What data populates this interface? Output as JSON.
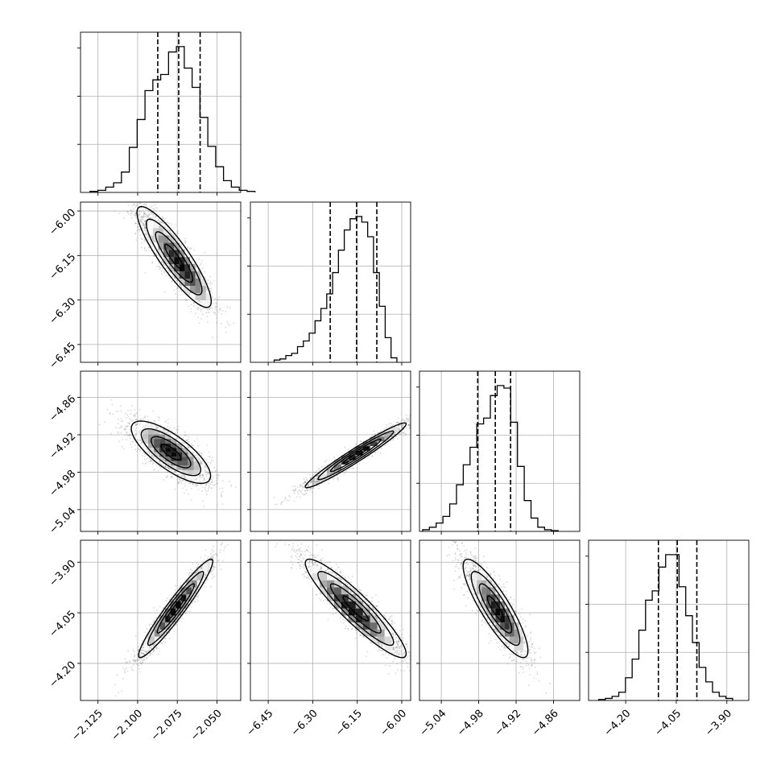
{
  "chart_data": {
    "type": "corner",
    "grid": true,
    "title": "",
    "parameters": [
      {
        "range": [
          -2.136,
          -2.035
        ],
        "ticks": [
          -2.125,
          -2.1,
          -2.075,
          -2.05
        ],
        "tick_labels": [
          "−2.125",
          "−2.100",
          "−2.075",
          "−2.050"
        ],
        "quantiles": [
          -2.0873,
          -2.0741,
          -2.0606
        ],
        "hist": {
          "start": -2.13,
          "step": 0.00495,
          "counts": [
            1,
            2,
            5,
            9,
            19,
            42,
            68,
            95,
            105,
            110,
            131,
            136,
            116,
            98,
            70,
            43,
            24,
            11,
            5,
            2,
            1
          ]
        }
      },
      {
        "range": [
          -6.51,
          -5.97
        ],
        "ticks": [
          -6.45,
          -6.3,
          -6.15,
          -6.0
        ],
        "tick_labels": [
          "−6.45",
          "−6.30",
          "−6.15",
          "−6.00"
        ],
        "quantiles": [
          -6.241,
          -6.152,
          -6.084
        ],
        "hist": {
          "start": -6.43,
          "step": 0.0197,
          "counts": [
            2,
            3,
            6,
            8,
            14,
            19,
            26,
            37,
            48,
            61,
            80,
            100,
            118,
            128,
            130,
            125,
            112,
            80,
            50,
            22,
            4
          ]
        }
      },
      {
        "range": [
          -5.075,
          -4.818
        ],
        "ticks": [
          -5.04,
          -4.98,
          -4.92,
          -4.86
        ],
        "tick_labels": [
          "−5.04",
          "−4.98",
          "−4.92",
          "−4.86"
        ],
        "quantiles": [
          -4.9816,
          -4.9534,
          -4.9289
        ],
        "hist": {
          "start": -5.07,
          "step": 0.01087,
          "counts": [
            2,
            5,
            10,
            18,
            33,
            56,
            80,
            101,
            129,
            136,
            163,
            175,
            172,
            131,
            78,
            37,
            16,
            5,
            2,
            1
          ]
        }
      },
      {
        "range": [
          -4.31,
          -3.835
        ],
        "ticks": [
          -4.2,
          -4.05,
          -3.9
        ],
        "tick_labels": [
          "−4.20",
          "−4.05",
          "−3.90"
        ],
        "quantiles": [
          -4.103,
          -4.047,
          -3.989
        ],
        "hist": {
          "start": -4.28,
          "step": 0.01985,
          "counts": [
            1,
            2,
            4,
            8,
            22,
            40,
            68,
            97,
            106,
            129,
            141,
            141,
            110,
            82,
            56,
            32,
            18,
            8,
            4,
            2
          ]
        }
      }
    ],
    "pairs": [
      {
        "x": 0,
        "y": 1,
        "center": [
          -2.077,
          -6.155
        ],
        "sigma": [
          0.0117,
          0.085
        ],
        "rho": -0.88,
        "peak": [
          -2.073,
          -6.18
        ]
      },
      {
        "x": 0,
        "y": 2,
        "center": [
          -2.079,
          -4.948
        ],
        "sigma": [
          0.0125,
          0.025
        ],
        "rho": -0.76,
        "peak": [
          -2.079,
          -4.947
        ]
      },
      {
        "x": 1,
        "y": 2,
        "center": [
          -6.155,
          -4.953
        ],
        "sigma": [
          0.085,
          0.026
        ],
        "rho": 0.97,
        "peak": [
          -6.145,
          -4.948
        ]
      },
      {
        "x": 0,
        "y": 3,
        "center": [
          -2.076,
          -4.037
        ],
        "sigma": [
          0.0117,
          0.073
        ],
        "rho": 0.955,
        "peak": [
          -2.076,
          -4.035
        ]
      },
      {
        "x": 1,
        "y": 3,
        "center": [
          -6.155,
          -4.037
        ],
        "sigma": [
          0.085,
          0.073
        ],
        "rho": -0.92,
        "peak": [
          -6.165,
          -4.04
        ]
      },
      {
        "x": 2,
        "y": 3,
        "center": [
          -4.953,
          -4.037
        ],
        "sigma": [
          0.026,
          0.073
        ],
        "rho": -0.86,
        "peak": [
          -4.947,
          -4.05
        ]
      }
    ]
  }
}
